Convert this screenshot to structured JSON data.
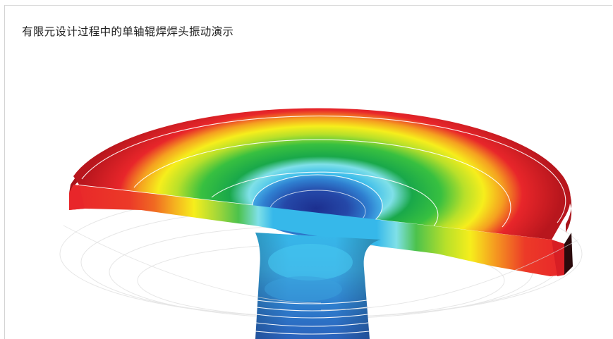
{
  "caption": "有限元设计过程中的单轴辊焊焊头振动演示",
  "image": {
    "subject": "sonotrode-fea-render",
    "colors": {
      "red": "#e8262a",
      "dark_red": "#b8161d",
      "orange": "#f06a22",
      "yellow": "#f6ee1c",
      "green": "#19a84a",
      "light_green": "#7cd15a",
      "cyan": "#36b8ea",
      "blue": "#2a6fc4",
      "dark_blue": "#1c2f8f"
    }
  }
}
